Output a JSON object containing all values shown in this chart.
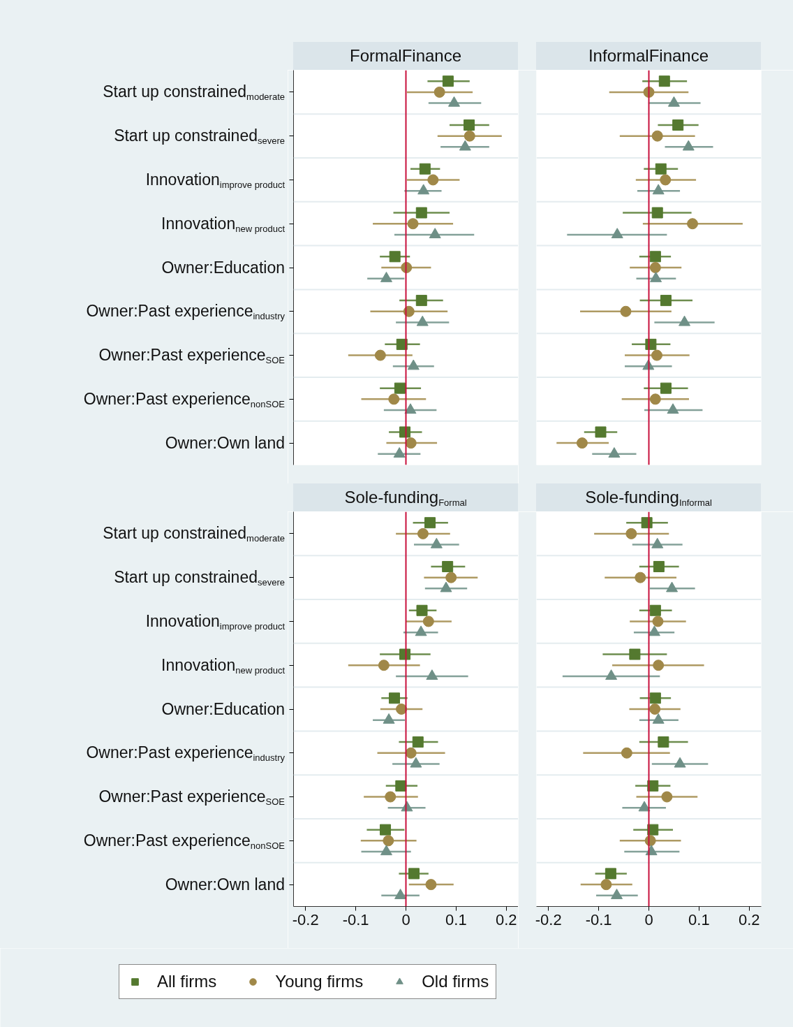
{
  "chart_data": [
    {
      "type": "scatter",
      "orientation": "horizontal",
      "title": "FormalFinance",
      "categories": [
        "Start up constrained$_{moderate}$",
        "Start up constrained$_{severe}$",
        "Innovation$_{improve product}$",
        "Innovation$_{new product}$",
        "Owner:Education",
        "Owner:Past experience$_{industry}$",
        "Owner:Past experience$_{SOE}$",
        "Owner:Past experience$_{nonSOE}$",
        "Owner:Own land"
      ],
      "xlim": [
        -0.224,
        0.224
      ],
      "xticks": [
        -0.2,
        -0.1,
        0,
        0.1,
        0.2
      ],
      "tick_labels": "y",
      "grid": "y",
      "legend": "bottom",
      "ref_lines": [
        {
          "axis": "x",
          "value": 0,
          "color": "#c8103c"
        }
      ],
      "series": [
        {
          "name": "All firms",
          "color": "#54792f",
          "marker": "square",
          "values": [
            0.084,
            0.126,
            0.038,
            0.031,
            -0.022,
            0.031,
            -0.008,
            -0.012,
            -0.002
          ],
          "errors": [
            [
              0.043,
              0.127
            ],
            [
              0.087,
              0.166
            ],
            [
              0.009,
              0.068
            ],
            [
              -0.025,
              0.087
            ],
            [
              -0.052,
              0.008
            ],
            [
              -0.013,
              0.074
            ],
            [
              -0.042,
              0.028
            ],
            [
              -0.052,
              0.03
            ],
            [
              -0.034,
              0.032
            ]
          ]
        },
        {
          "name": "Young firms",
          "color": "#a08848",
          "marker": "circle",
          "values": [
            0.067,
            0.127,
            0.054,
            0.014,
            0.001,
            0.006,
            -0.051,
            -0.024,
            0.01
          ],
          "errors": [
            [
              0.002,
              0.133
            ],
            [
              0.063,
              0.191
            ],
            [
              0.002,
              0.107
            ],
            [
              -0.066,
              0.094
            ],
            [
              -0.049,
              0.05
            ],
            [
              -0.071,
              0.083
            ],
            [
              -0.115,
              0.013
            ],
            [
              -0.089,
              0.04
            ],
            [
              -0.039,
              0.062
            ]
          ]
        },
        {
          "name": "Old firms",
          "color": "#6f9087",
          "marker": "triangle",
          "values": [
            0.096,
            0.118,
            0.035,
            0.058,
            -0.039,
            0.033,
            0.015,
            0.009,
            -0.013
          ],
          "errors": [
            [
              0.045,
              0.15
            ],
            [
              0.069,
              0.166
            ],
            [
              -0.003,
              0.071
            ],
            [
              -0.023,
              0.136
            ],
            [
              -0.077,
              -0.003
            ],
            [
              -0.02,
              0.086
            ],
            [
              -0.026,
              0.056
            ],
            [
              -0.044,
              0.061
            ],
            [
              -0.056,
              0.029
            ]
          ]
        }
      ]
    },
    {
      "type": "scatter",
      "orientation": "horizontal",
      "title": "InformalFinance",
      "categories": [
        "Start up constrained$_{moderate}$",
        "Start up constrained$_{severe}$",
        "Innovation$_{improve product}$",
        "Innovation$_{new product}$",
        "Owner:Education",
        "Owner:Past experience$_{industry}$",
        "Owner:Past experience$_{SOE}$",
        "Owner:Past experience$_{nonSOE}$",
        "Owner:Own land"
      ],
      "xlim": [
        -0.224,
        0.224
      ],
      "xticks": [
        -0.2,
        -0.1,
        0,
        0.1,
        0.2
      ],
      "tick_labels": false,
      "grid": "y",
      "legend": "bottom",
      "ref_lines": [
        {
          "axis": "x",
          "value": 0,
          "color": "#c8103c"
        }
      ],
      "series": [
        {
          "name": "All firms",
          "color": "#54792f",
          "marker": "square",
          "values": [
            0.031,
            0.058,
            0.024,
            0.017,
            0.013,
            0.034,
            0.004,
            0.034,
            -0.096
          ],
          "errors": [
            [
              -0.013,
              0.076
            ],
            [
              0.018,
              0.099
            ],
            [
              -0.01,
              0.058
            ],
            [
              -0.052,
              0.085
            ],
            [
              -0.019,
              0.044
            ],
            [
              -0.018,
              0.087
            ],
            [
              -0.034,
              0.043
            ],
            [
              -0.01,
              0.078
            ],
            [
              -0.129,
              -0.063
            ]
          ]
        },
        {
          "name": "Young firms",
          "color": "#a08848",
          "marker": "circle",
          "values": [
            0.0,
            0.017,
            0.033,
            0.087,
            0.013,
            -0.046,
            0.016,
            0.013,
            -0.133
          ],
          "errors": [
            [
              -0.079,
              0.079
            ],
            [
              -0.058,
              0.092
            ],
            [
              -0.026,
              0.094
            ],
            [
              -0.012,
              0.187
            ],
            [
              -0.038,
              0.065
            ],
            [
              -0.137,
              0.045
            ],
            [
              -0.048,
              0.081
            ],
            [
              -0.054,
              0.08
            ],
            [
              -0.184,
              -0.08
            ]
          ]
        },
        {
          "name": "Old firms",
          "color": "#6f9087",
          "marker": "triangle",
          "values": [
            0.05,
            0.079,
            0.019,
            -0.063,
            0.014,
            0.071,
            -0.001,
            0.048,
            -0.069
          ],
          "errors": [
            [
              -0.001,
              0.103
            ],
            [
              0.032,
              0.128
            ],
            [
              -0.023,
              0.062
            ],
            [
              -0.163,
              0.036
            ],
            [
              -0.025,
              0.054
            ],
            [
              0.011,
              0.131
            ],
            [
              -0.048,
              0.046
            ],
            [
              -0.009,
              0.107
            ],
            [
              -0.113,
              -0.025
            ]
          ]
        }
      ]
    },
    {
      "type": "scatter",
      "orientation": "horizontal",
      "title": "Sole-funding$_{Formal}$",
      "categories": [
        "Start up constrained$_{moderate}$",
        "Start up constrained$_{severe}$",
        "Innovation$_{improve product}$",
        "Innovation$_{new product}$",
        "Owner:Education",
        "Owner:Past experience$_{industry}$",
        "Owner:Past experience$_{SOE}$",
        "Owner:Past experience$_{nonSOE}$",
        "Owner:Own land"
      ],
      "xlim": [
        -0.224,
        0.224
      ],
      "xticks": [
        -0.2,
        -0.1,
        0,
        0.1,
        0.2
      ],
      "grid": "y",
      "legend": "bottom",
      "ref_lines": [
        {
          "axis": "x",
          "value": 0,
          "color": "#c8103c"
        }
      ],
      "series": [
        {
          "name": "All firms",
          "color": "#54792f",
          "marker": "square",
          "values": [
            0.048,
            0.083,
            0.032,
            -0.002,
            -0.023,
            0.024,
            -0.01,
            -0.041,
            0.016
          ],
          "errors": [
            [
              0.014,
              0.084
            ],
            [
              0.05,
              0.118
            ],
            [
              0.006,
              0.061
            ],
            [
              -0.052,
              0.049
            ],
            [
              -0.049,
              0.003
            ],
            [
              -0.014,
              0.064
            ],
            [
              -0.04,
              0.023
            ],
            [
              -0.078,
              -0.003
            ],
            [
              -0.014,
              0.045
            ]
          ]
        },
        {
          "name": "Young firms",
          "color": "#a08848",
          "marker": "circle",
          "values": [
            0.034,
            0.09,
            0.045,
            -0.044,
            -0.009,
            0.01,
            -0.031,
            -0.035,
            0.05
          ],
          "errors": [
            [
              -0.02,
              0.088
            ],
            [
              0.036,
              0.143
            ],
            [
              0.0,
              0.091
            ],
            [
              -0.115,
              0.028
            ],
            [
              -0.051,
              0.033
            ],
            [
              -0.057,
              0.078
            ],
            [
              -0.084,
              0.024
            ],
            [
              -0.09,
              0.021
            ],
            [
              0.006,
              0.095
            ]
          ]
        },
        {
          "name": "Old firms",
          "color": "#6f9087",
          "marker": "triangle",
          "values": [
            0.061,
            0.08,
            0.03,
            0.052,
            -0.034,
            0.02,
            0.002,
            -0.039,
            -0.011
          ],
          "errors": [
            [
              0.016,
              0.106
            ],
            [
              0.038,
              0.122
            ],
            [
              -0.005,
              0.064
            ],
            [
              -0.02,
              0.124
            ],
            [
              -0.066,
              -0.002
            ],
            [
              -0.027,
              0.067
            ],
            [
              -0.036,
              0.039
            ],
            [
              -0.089,
              0.01
            ],
            [
              -0.049,
              0.027
            ]
          ]
        }
      ]
    },
    {
      "type": "scatter",
      "orientation": "horizontal",
      "title": "Sole-funding$_{Informal}$",
      "categories": [
        "Start up constrained$_{moderate}$",
        "Start up constrained$_{severe}$",
        "Innovation$_{improve product}$",
        "Innovation$_{new product}$",
        "Owner:Education",
        "Owner:Past experience$_{industry}$",
        "Owner:Past experience$_{SOE}$",
        "Owner:Past experience$_{nonSOE}$",
        "Owner:Own land"
      ],
      "xlim": [
        -0.224,
        0.224
      ],
      "xticks": [
        -0.2,
        -0.1,
        0,
        0.1,
        0.2
      ],
      "tick_labels": "x",
      "grid": "y",
      "legend": "bottom",
      "ref_lines": [
        {
          "axis": "x",
          "value": 0,
          "color": "#c8103c"
        }
      ],
      "series": [
        {
          "name": "All firms",
          "color": "#54792f",
          "marker": "square",
          "values": [
            -0.004,
            0.02,
            0.013,
            -0.028,
            0.013,
            0.029,
            0.008,
            0.008,
            -0.076
          ],
          "errors": [
            [
              -0.045,
              0.038
            ],
            [
              -0.019,
              0.06
            ],
            [
              -0.019,
              0.046
            ],
            [
              -0.092,
              0.036
            ],
            [
              -0.018,
              0.044
            ],
            [
              -0.019,
              0.078
            ],
            [
              -0.027,
              0.043
            ],
            [
              -0.031,
              0.048
            ],
            [
              -0.107,
              -0.044
            ]
          ]
        },
        {
          "name": "Young firms",
          "color": "#a08848",
          "marker": "circle",
          "values": [
            -0.035,
            -0.017,
            0.018,
            0.019,
            0.012,
            -0.044,
            0.036,
            0.003,
            -0.085
          ],
          "errors": [
            [
              -0.109,
              0.04
            ],
            [
              -0.088,
              0.055
            ],
            [
              -0.038,
              0.074
            ],
            [
              -0.073,
              0.11
            ],
            [
              -0.039,
              0.063
            ],
            [
              -0.131,
              0.042
            ],
            [
              -0.025,
              0.097
            ],
            [
              -0.058,
              0.064
            ],
            [
              -0.136,
              -0.033
            ]
          ]
        },
        {
          "name": "Old firms",
          "color": "#6f9087",
          "marker": "triangle",
          "values": [
            0.017,
            0.046,
            0.011,
            -0.075,
            0.019,
            0.062,
            -0.009,
            0.005,
            -0.064
          ],
          "errors": [
            [
              -0.033,
              0.067
            ],
            [
              0.002,
              0.092
            ],
            [
              -0.03,
              0.051
            ],
            [
              -0.172,
              0.022
            ],
            [
              -0.019,
              0.059
            ],
            [
              0.006,
              0.118
            ],
            [
              -0.053,
              0.034
            ],
            [
              -0.049,
              0.061
            ],
            [
              -0.105,
              -0.022
            ]
          ]
        }
      ]
    }
  ]
}
